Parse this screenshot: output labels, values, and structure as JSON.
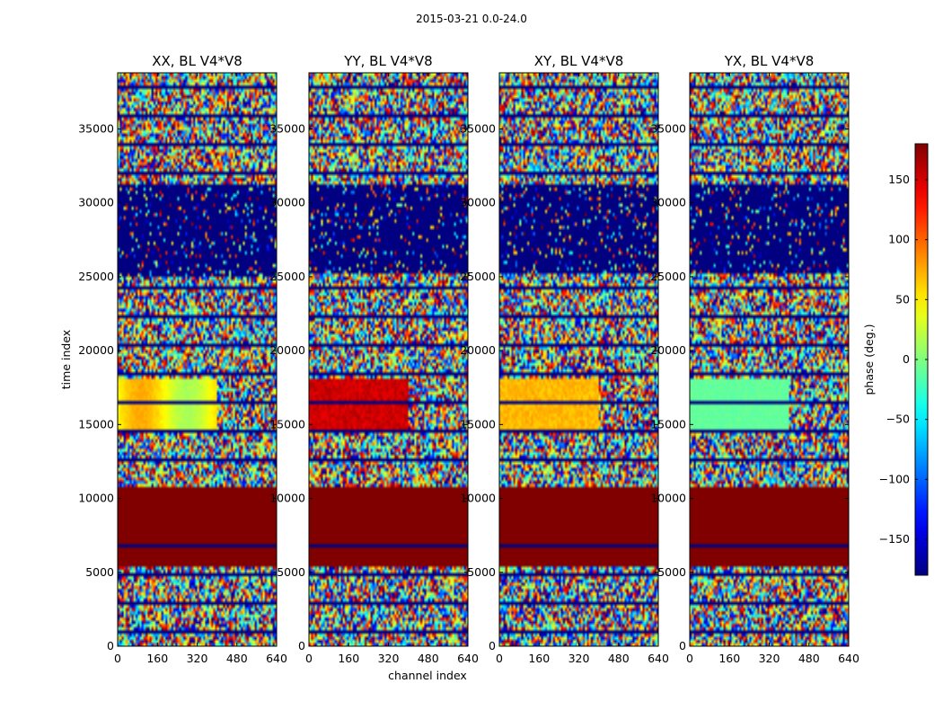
{
  "figure": {
    "suptitle": "2015-03-21 0.0-24.0"
  },
  "chart_data": {
    "type": "heatmap",
    "x_label": "channel index",
    "y_label": "time index",
    "x_range": [
      0,
      640
    ],
    "y_range": [
      0,
      38800
    ],
    "x_ticks": [
      "0",
      "160",
      "320",
      "480",
      "640"
    ],
    "y_ticks": [
      "0",
      "5000",
      "10000",
      "15000",
      "20000",
      "25000",
      "30000",
      "35000"
    ],
    "colorbar": {
      "label": "phase (deg.)",
      "range": [
        -180,
        180
      ],
      "ticks": [
        "150",
        "100",
        "50",
        "0",
        "−50",
        "−100",
        "−150"
      ],
      "tick_values": [
        150,
        100,
        50,
        0,
        -50,
        -100,
        -150
      ],
      "colormap": "jet"
    },
    "panels": [
      {
        "title": "XX, BL V4*V8",
        "product": "XX"
      },
      {
        "title": "YY, BL V4*V8",
        "product": "YY"
      },
      {
        "title": "XY, BL V4*V8",
        "product": "XY"
      },
      {
        "title": "YX, BL V4*V8",
        "product": "YX"
      }
    ],
    "features": {
      "noise_phase": "uniform random -180..180",
      "flagged_dark_red_time_range": [
        5300,
        10800
      ],
      "dark_blue_flag_time_range": [
        25300,
        31200
      ],
      "dark_blue_flag_time_range_xx": [
        25000,
        31200
      ],
      "coherent_band_time_range": [
        14500,
        18000
      ],
      "dark_blue_row_in_red_block": 6800
    }
  }
}
